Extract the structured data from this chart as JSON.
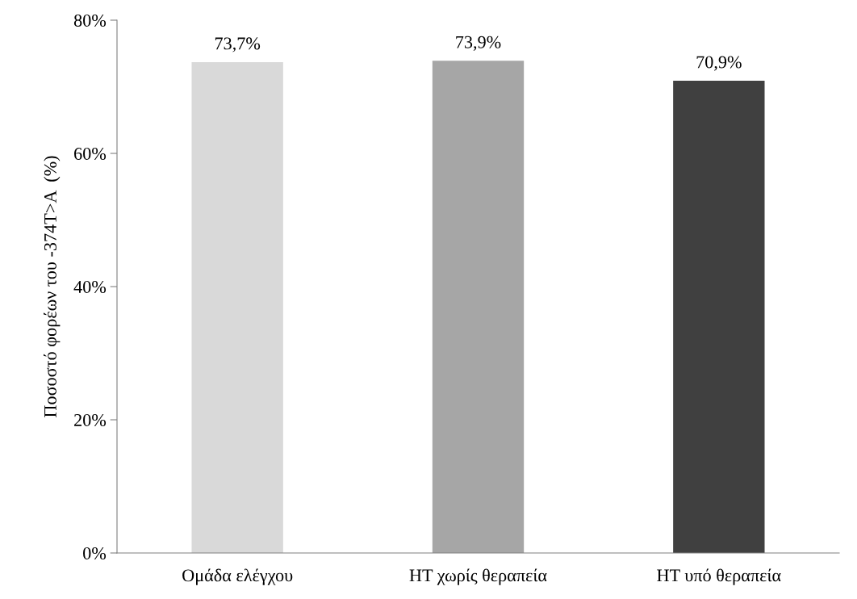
{
  "chart_data": {
    "type": "bar",
    "ylabel": "Ποσοστό φορέων του -374T>A  (%)",
    "categories": [
      "Ομάδα ελέγχου",
      "HT χωρίς θεραπεία",
      "HT υπό θεραπεία"
    ],
    "values": [
      73.7,
      73.9,
      70.9
    ],
    "colors": [
      "#d9d9d9",
      "#a6a6a6",
      "#404040"
    ],
    "value_labels": [
      "73,7%",
      "73,9%",
      "70,9%"
    ],
    "ylim": [
      0,
      80
    ],
    "yticks": [
      {
        "value": 0,
        "label": "0%"
      },
      {
        "value": 20,
        "label": "20%"
      },
      {
        "value": 40,
        "label": "40%"
      },
      {
        "value": 60,
        "label": "60%"
      },
      {
        "value": 80,
        "label": "80%"
      }
    ],
    "grid": false,
    "legend": false
  }
}
